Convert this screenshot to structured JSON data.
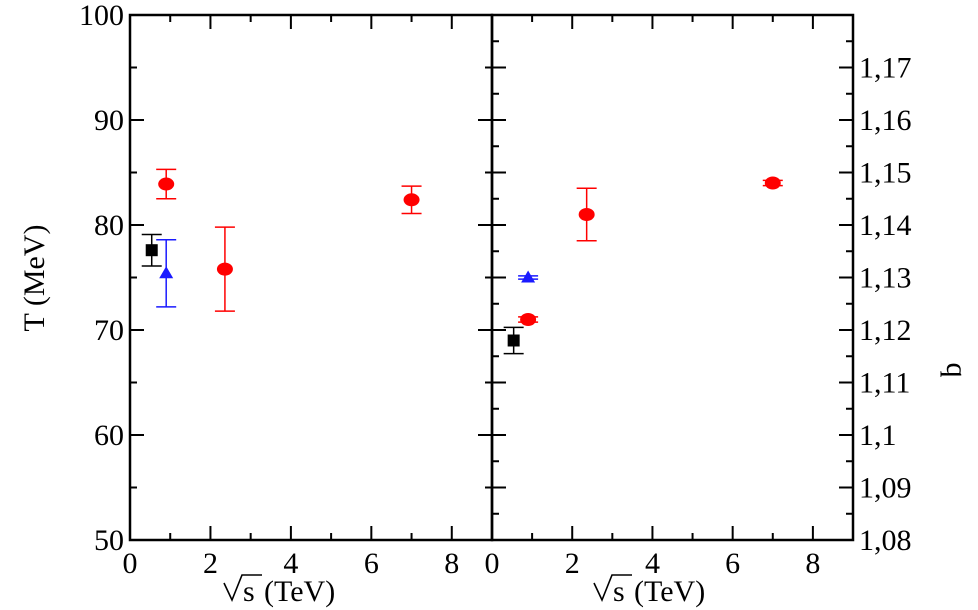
{
  "chart_data": [
    {
      "type": "scatter",
      "panel": "left",
      "ylabel": "T (MeV)",
      "xlabel": "(TeV)",
      "xlabel_sqrt": "s",
      "xlim": [
        0,
        9
      ],
      "ylim": [
        50,
        100
      ],
      "xticks": [
        0,
        2,
        4,
        6,
        8
      ],
      "xtick_labels": [
        "0",
        "2",
        "4",
        "6",
        "8"
      ],
      "yticks": [
        50,
        60,
        70,
        80,
        90,
        100
      ],
      "ytick_labels": [
        "50",
        "60",
        "70",
        "80",
        "90",
        "100"
      ],
      "grid": false,
      "series": [
        {
          "marker": "square",
          "color": "#000000",
          "points": [
            {
              "x": 0.54,
              "y": 77.6,
              "err": 1.5
            }
          ]
        },
        {
          "marker": "triangle",
          "color": "#1a1aff",
          "points": [
            {
              "x": 0.9,
              "y": 75.4,
              "err": 3.2
            }
          ]
        },
        {
          "marker": "circle",
          "color": "#ff0000",
          "points": [
            {
              "x": 0.9,
              "y": 83.9,
              "err": 1.4
            },
            {
              "x": 2.36,
              "y": 75.8,
              "err": 4.0
            },
            {
              "x": 7.0,
              "y": 82.4,
              "err": 1.3
            }
          ]
        }
      ]
    },
    {
      "type": "scatter",
      "panel": "right",
      "ylabel": "q",
      "xlabel": "(TeV)",
      "xlabel_sqrt": "s",
      "xlim": [
        0,
        9
      ],
      "ylim": [
        1.08,
        1.18
      ],
      "xticks": [
        0,
        2,
        4,
        6,
        8
      ],
      "xtick_labels": [
        "0",
        "2",
        "4",
        "6",
        "8"
      ],
      "yticks": [
        1.08,
        1.09,
        1.1,
        1.11,
        1.12,
        1.13,
        1.14,
        1.15,
        1.16,
        1.17
      ],
      "ytick_labels": [
        "1,08",
        "1,09",
        "1,1",
        "1,11",
        "1,12",
        "1,13",
        "1,14",
        "1,15",
        "1,16",
        "1,17"
      ],
      "grid": false,
      "series": [
        {
          "marker": "square",
          "color": "#000000",
          "points": [
            {
              "x": 0.54,
              "y": 1.118,
              "err": 0.0025
            }
          ]
        },
        {
          "marker": "triangle",
          "color": "#1a1aff",
          "points": [
            {
              "x": 0.9,
              "y": 1.13,
              "err": 0.0003
            }
          ]
        },
        {
          "marker": "circle",
          "color": "#ff0000",
          "points": [
            {
              "x": 0.9,
              "y": 1.122,
              "err": 0.0005
            },
            {
              "x": 2.36,
              "y": 1.142,
              "err": 0.005
            },
            {
              "x": 7.0,
              "y": 1.148,
              "err": 0.0005
            }
          ]
        }
      ]
    }
  ]
}
